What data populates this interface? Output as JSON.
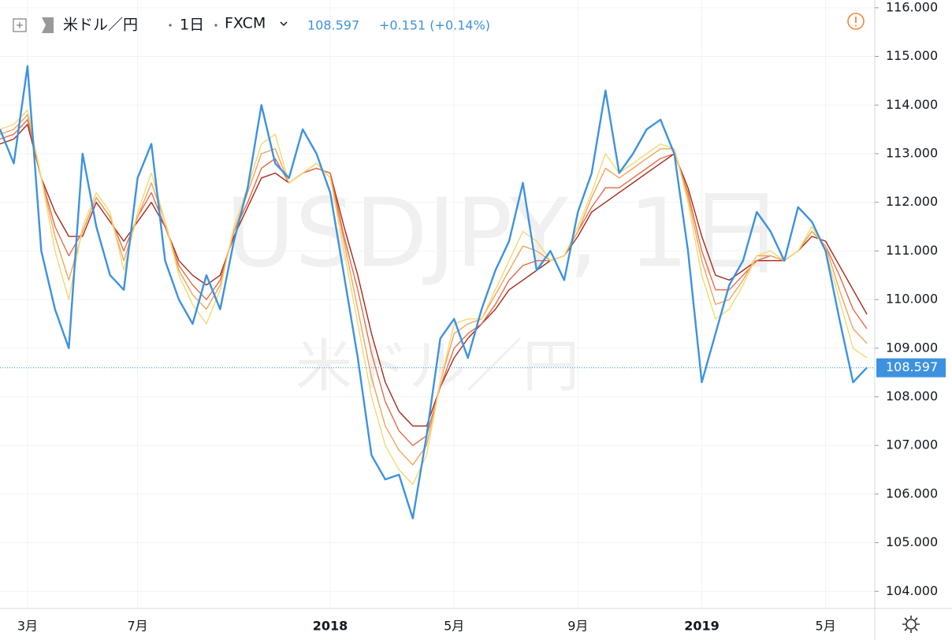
{
  "chart_data": {
    "type": "line",
    "symbol": "米ドル／円",
    "interval": "1日",
    "source": "FXCM",
    "last_price": 108.597,
    "change": "+0.151 (+0.14%)",
    "watermark": "USDJPY, 1日",
    "watermark_sub": "米ドル／円",
    "categories": [
      null,
      null,
      "3月",
      null,
      null,
      null,
      null,
      null,
      null,
      null,
      "7月",
      null,
      null,
      null,
      null,
      null,
      null,
      null,
      null,
      null,
      null,
      null,
      null,
      null,
      "2018",
      null,
      null,
      null,
      null,
      null,
      null,
      null,
      null,
      "5月",
      null,
      null,
      null,
      null,
      null,
      null,
      null,
      null,
      "9月",
      null,
      null,
      null,
      null,
      null,
      null,
      null,
      null,
      "2019",
      null,
      null,
      null,
      null,
      null,
      null,
      null,
      null,
      "5月",
      null,
      null,
      null
    ],
    "series": [
      {
        "color": "#a52a1c",
        "values": [
          113.2,
          113.3,
          113.6,
          112.5,
          111.8,
          111.3,
          111.3,
          112.0,
          111.6,
          111.2,
          111.6,
          112.0,
          111.5,
          110.8,
          110.5,
          110.3,
          110.5,
          111.3,
          111.9,
          112.5,
          112.6,
          112.4,
          112.6,
          112.7,
          112.6,
          111.5,
          110.5,
          109.3,
          108.3,
          107.7,
          107.4,
          107.4,
          108.2,
          108.8,
          109.2,
          109.5,
          109.8,
          110.2,
          110.4,
          110.6,
          110.8,
          110.9,
          111.3,
          111.8,
          112.0,
          112.2,
          112.4,
          112.6,
          112.8,
          113.0,
          112.3,
          111.3,
          110.5,
          110.4,
          110.6,
          110.8,
          110.8,
          110.8,
          111.0,
          111.3,
          111.2,
          110.7,
          110.2,
          109.7
        ]
      },
      {
        "color": "#e56a45",
        "values": [
          113.3,
          113.4,
          113.7,
          112.5,
          111.5,
          110.9,
          111.4,
          112.1,
          111.7,
          111.0,
          111.7,
          112.2,
          111.5,
          110.7,
          110.3,
          110.0,
          110.4,
          111.4,
          112.0,
          112.7,
          112.9,
          112.4,
          112.6,
          112.7,
          112.6,
          111.3,
          110.2,
          108.9,
          107.9,
          107.3,
          107.0,
          107.2,
          108.2,
          109.0,
          109.3,
          109.5,
          109.9,
          110.4,
          110.7,
          110.8,
          110.8,
          110.9,
          111.4,
          111.9,
          112.3,
          112.3,
          112.5,
          112.7,
          112.9,
          113.0,
          112.2,
          111.0,
          110.2,
          110.2,
          110.5,
          110.8,
          110.9,
          110.8,
          111.0,
          111.4,
          111.1,
          110.5,
          109.8,
          109.4
        ]
      },
      {
        "color": "#f0a45a",
        "values": [
          113.4,
          113.5,
          113.8,
          112.5,
          111.3,
          110.4,
          111.4,
          112.1,
          111.7,
          110.8,
          111.7,
          112.4,
          111.6,
          110.6,
          110.1,
          109.8,
          110.3,
          111.4,
          112.2,
          113.0,
          113.1,
          112.4,
          112.6,
          112.8,
          112.5,
          111.2,
          109.8,
          108.4,
          107.4,
          106.9,
          106.6,
          107.0,
          108.3,
          109.3,
          109.5,
          109.6,
          110.1,
          110.6,
          111.1,
          111.0,
          110.8,
          110.9,
          111.4,
          112.1,
          112.7,
          112.5,
          112.7,
          112.9,
          113.1,
          113.1,
          112.1,
          110.8,
          109.9,
          110.0,
          110.4,
          110.9,
          110.9,
          110.8,
          111.0,
          111.4,
          111.1,
          110.2,
          109.4,
          109.1
        ]
      },
      {
        "color": "#f3d872",
        "values": [
          113.5,
          113.6,
          113.9,
          112.5,
          111.0,
          110.0,
          111.5,
          112.2,
          111.8,
          110.6,
          111.8,
          112.6,
          111.6,
          110.5,
          109.9,
          109.5,
          110.2,
          111.5,
          112.3,
          113.2,
          113.4,
          112.4,
          112.6,
          112.8,
          112.5,
          111.0,
          109.5,
          108.0,
          107.0,
          106.5,
          106.2,
          106.8,
          108.3,
          109.5,
          109.6,
          109.6,
          110.2,
          110.8,
          111.4,
          111.2,
          110.8,
          110.9,
          111.5,
          112.2,
          113.0,
          112.6,
          112.8,
          113.0,
          113.2,
          113.1,
          112.0,
          110.5,
          109.6,
          109.8,
          110.3,
          110.9,
          111.0,
          110.8,
          111.0,
          111.5,
          111.0,
          110.0,
          109.0,
          108.8
        ]
      },
      {
        "color": "#3d92e0",
        "values": [
          113.5,
          112.8,
          114.8,
          111.0,
          109.8,
          109.0,
          113.0,
          111.5,
          110.5,
          110.2,
          112.5,
          113.2,
          110.8,
          110.0,
          109.5,
          110.5,
          109.8,
          111.2,
          112.3,
          114.0,
          112.8,
          112.5,
          113.5,
          113.0,
          112.2,
          110.5,
          108.8,
          106.8,
          106.3,
          106.4,
          105.5,
          107.2,
          109.2,
          109.6,
          108.8,
          109.8,
          110.6,
          111.2,
          112.4,
          110.6,
          111.0,
          110.4,
          111.8,
          112.6,
          114.3,
          112.6,
          113.0,
          113.5,
          113.7,
          113.0,
          111.0,
          108.3,
          109.3,
          110.3,
          110.8,
          111.8,
          111.4,
          110.8,
          111.9,
          111.6,
          111.0,
          109.6,
          108.3,
          108.6
        ]
      }
    ],
    "ylim": [
      103.68,
      116.16
    ],
    "yticks": [
      {
        "value": 104,
        "label": "104.000"
      },
      {
        "value": 105,
        "label": "105.000"
      },
      {
        "value": 106,
        "label": "106.000"
      },
      {
        "value": 107,
        "label": "107.000"
      },
      {
        "value": 108,
        "label": "108.000"
      },
      {
        "value": 109,
        "label": "109.000"
      },
      {
        "value": 110,
        "label": "110.000"
      },
      {
        "value": 111,
        "label": "111.000"
      },
      {
        "value": 112,
        "label": "112.000"
      },
      {
        "value": 113,
        "label": "113.000"
      },
      {
        "value": 114,
        "label": "114.000"
      },
      {
        "value": 115,
        "label": "115.000"
      },
      {
        "value": 116,
        "label": "116.000"
      }
    ],
    "grid": true
  }
}
